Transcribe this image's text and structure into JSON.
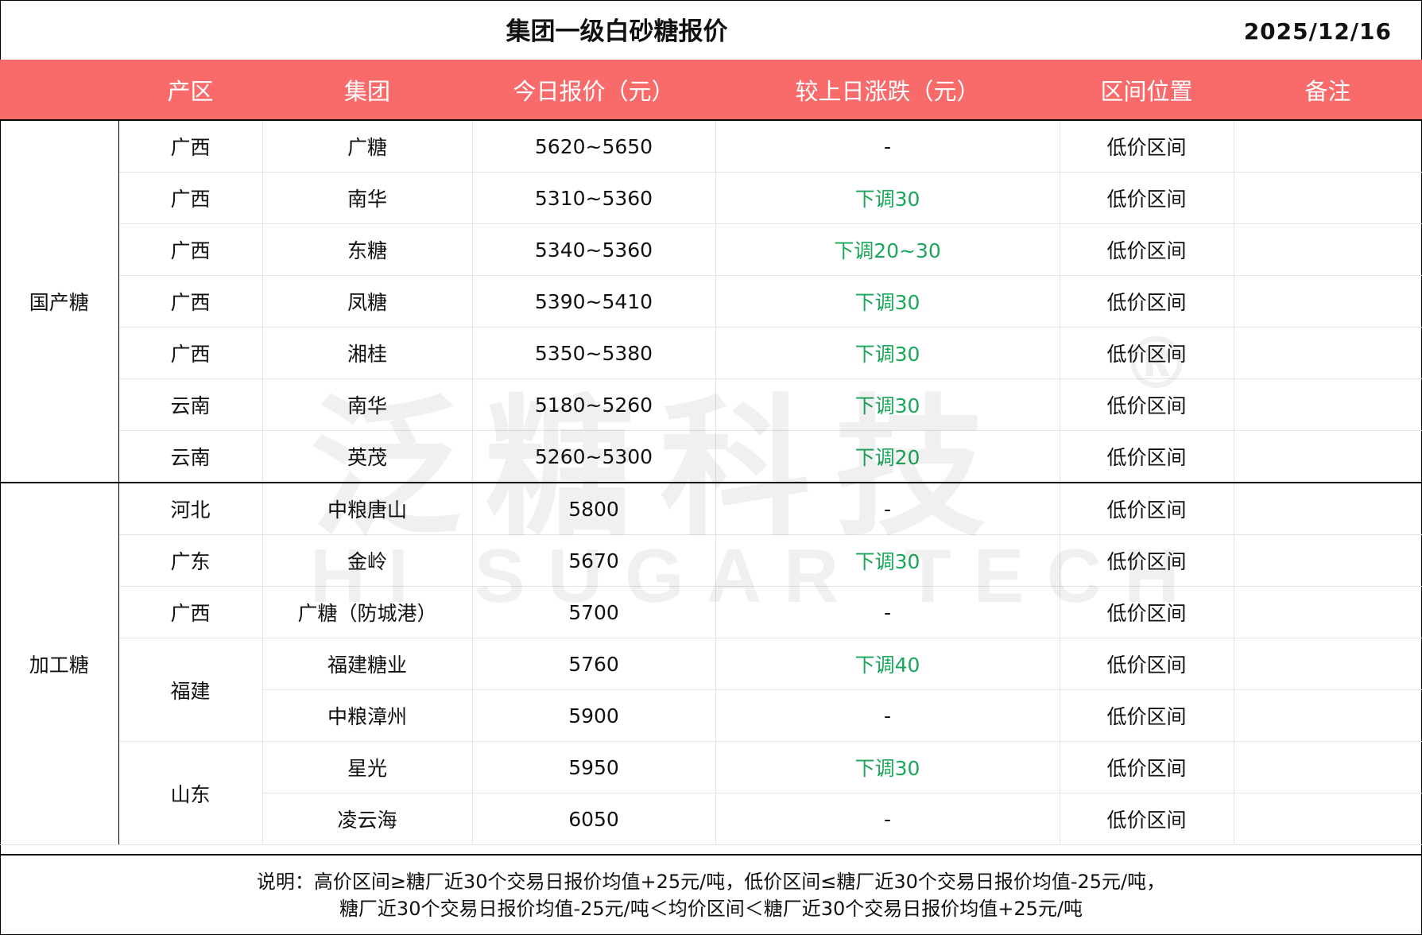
{
  "title": "集团一级白砂糖报价",
  "date": "2025/12/16",
  "header_color": "#f96b6b",
  "down_color": "#1aa75a",
  "columns": [
    "",
    "产区",
    "集团",
    "今日报价（元）",
    "较上日涨跌（元）",
    "区间位置",
    "备注"
  ],
  "groups": [
    {
      "category": "国产糖",
      "rows": [
        {
          "region": "广西",
          "group": "广糖",
          "price": "5620~5650",
          "change": "-",
          "position": "低价区间",
          "note": ""
        },
        {
          "region": "广西",
          "group": "南华",
          "price": "5310~5360",
          "change": "下调30",
          "position": "低价区间",
          "note": ""
        },
        {
          "region": "广西",
          "group": "东糖",
          "price": "5340~5360",
          "change": "下调20~30",
          "position": "低价区间",
          "note": ""
        },
        {
          "region": "广西",
          "group": "凤糖",
          "price": "5390~5410",
          "change": "下调30",
          "position": "低价区间",
          "note": ""
        },
        {
          "region": "广西",
          "group": "湘桂",
          "price": "5350~5380",
          "change": "下调30",
          "position": "低价区间",
          "note": ""
        },
        {
          "region": "云南",
          "group": "南华",
          "price": "5180~5260",
          "change": "下调30",
          "position": "低价区间",
          "note": ""
        },
        {
          "region": "云南",
          "group": "英茂",
          "price": "5260~5300",
          "change": "下调20",
          "position": "低价区间",
          "note": ""
        }
      ]
    },
    {
      "category": "加工糖",
      "rows": [
        {
          "region": "河北",
          "group": "中粮唐山",
          "price": "5800",
          "change": "-",
          "position": "低价区间",
          "note": ""
        },
        {
          "region": "广东",
          "group": "金岭",
          "price": "5670",
          "change": "下调30",
          "position": "低价区间",
          "note": ""
        },
        {
          "region": "广西",
          "group": "广糖（防城港）",
          "price": "5700",
          "change": "-",
          "position": "低价区间",
          "note": ""
        },
        {
          "region": "福建",
          "group": "福建糖业",
          "price": "5760",
          "change": "下调40",
          "position": "低价区间",
          "note": ""
        },
        {
          "region": "福建",
          "group": "中粮漳州",
          "price": "5900",
          "change": "-",
          "position": "低价区间",
          "note": ""
        },
        {
          "region": "山东",
          "group": "星光",
          "price": "5950",
          "change": "下调30",
          "position": "低价区间",
          "note": ""
        },
        {
          "region": "山东",
          "group": "凌云海",
          "price": "6050",
          "change": "-",
          "position": "低价区间",
          "note": ""
        }
      ]
    }
  ],
  "footer": {
    "line1": "说明：高价区间≥糖厂近30个交易日报价均值+25元/吨，低价区间≤糖厂近30个交易日报价均值-25元/吨，",
    "line2": "糖厂近30个交易日报价均值-25元/吨＜均价区间＜糖厂近30个交易日报价均值+25元/吨"
  },
  "watermark": {
    "cn": "泛糖科技",
    "en": "HI SUGAR TECH",
    "mark": "®"
  }
}
